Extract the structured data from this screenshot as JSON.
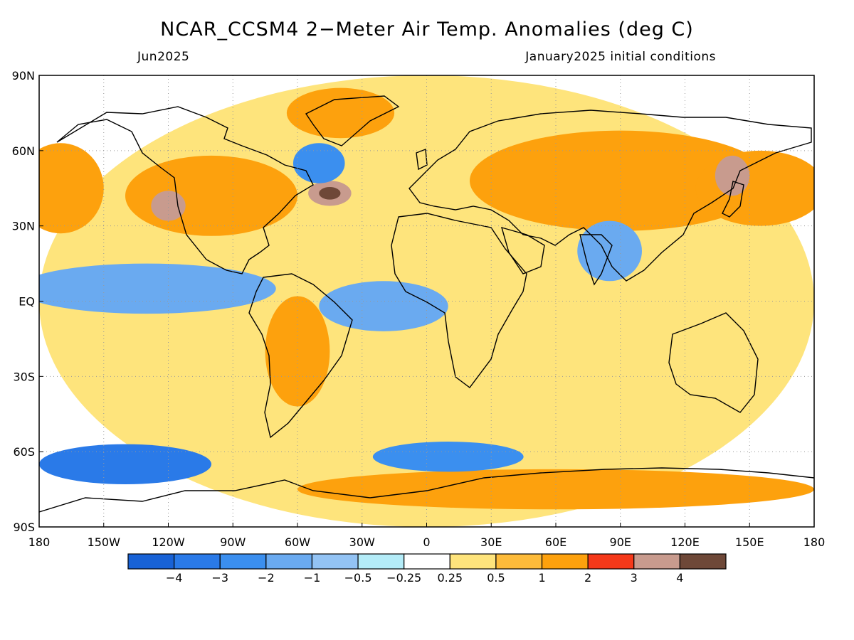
{
  "title": "NCAR_CCSM4 2−Meter Air Temp. Anomalies (deg C)",
  "subtitle_left": "Jun2025",
  "subtitle_right": "January2025 initial conditions",
  "map": {
    "projection": "equirectangular",
    "lon_range": [
      -180,
      180
    ],
    "lat_range": [
      -90,
      90
    ],
    "lon_ticks": [
      "180",
      "150W",
      "120W",
      "90W",
      "60W",
      "30W",
      "0",
      "30E",
      "60E",
      "90E",
      "120E",
      "150E",
      "180"
    ],
    "lat_ticks": [
      "90N",
      "60N",
      "30N",
      "EQ",
      "30S",
      "60S",
      "90S"
    ],
    "anomaly_regions": [
      {
        "lon": 0,
        "lat": 0,
        "rx": 180,
        "ry": 90,
        "level": "0.25-0.5"
      },
      {
        "lon": 90,
        "lat": 48,
        "rx": 70,
        "ry": 20,
        "level": "1-2"
      },
      {
        "lon": -100,
        "lat": 42,
        "rx": 40,
        "ry": 16,
        "level": "1-2"
      },
      {
        "lon": -40,
        "lat": 75,
        "rx": 25,
        "ry": 10,
        "level": "1-2"
      },
      {
        "lon": -170,
        "lat": 45,
        "rx": 20,
        "ry": 18,
        "level": "1-2"
      },
      {
        "lon": 155,
        "lat": 45,
        "rx": 30,
        "ry": 15,
        "level": "1-2"
      },
      {
        "lon": -60,
        "lat": -20,
        "rx": 15,
        "ry": 22,
        "level": "1-2"
      },
      {
        "lon": 60,
        "lat": -75,
        "rx": 120,
        "ry": 8,
        "level": "1-2"
      },
      {
        "lon": -120,
        "lat": 38,
        "rx": 8,
        "ry": 6,
        "level": "3-4"
      },
      {
        "lon": -45,
        "lat": 43,
        "rx": 10,
        "ry": 5,
        "level": "3-4"
      },
      {
        "lon": 142,
        "lat": 50,
        "rx": 8,
        "ry": 8,
        "level": "3-4"
      },
      {
        "lon": -45,
        "lat": 43,
        "rx": 5,
        "ry": 2.5,
        "level": ">4"
      },
      {
        "lon": -50,
        "lat": 55,
        "rx": 12,
        "ry": 8,
        "level": "-2--1"
      },
      {
        "lon": -140,
        "lat": -65,
        "rx": 40,
        "ry": 8,
        "level": "-3--2"
      },
      {
        "lon": 10,
        "lat": -62,
        "rx": 35,
        "ry": 6,
        "level": "-2--1"
      },
      {
        "lon": -130,
        "lat": 5,
        "rx": 60,
        "ry": 10,
        "level": "-1--0.5"
      },
      {
        "lon": -20,
        "lat": -2,
        "rx": 30,
        "ry": 10,
        "level": "-1--0.5"
      },
      {
        "lon": 85,
        "lat": 20,
        "rx": 15,
        "ry": 12,
        "level": "-1--0.5"
      }
    ]
  },
  "colorbar": {
    "labels": [
      "−4",
      "−3",
      "−2",
      "−1",
      "−0.5",
      "−0.25",
      "0.25",
      "0.5",
      "1",
      "2",
      "3",
      "4"
    ],
    "colors": [
      "#1862d6",
      "#2a7ae8",
      "#3b8fef",
      "#6aaaf0",
      "#93c3f4",
      "#b4ecf8",
      "#ffffff",
      "#fee47c",
      "#fdbb3a",
      "#fda10d",
      "#f5391a",
      "#c89b8e",
      "#6e4838"
    ]
  }
}
